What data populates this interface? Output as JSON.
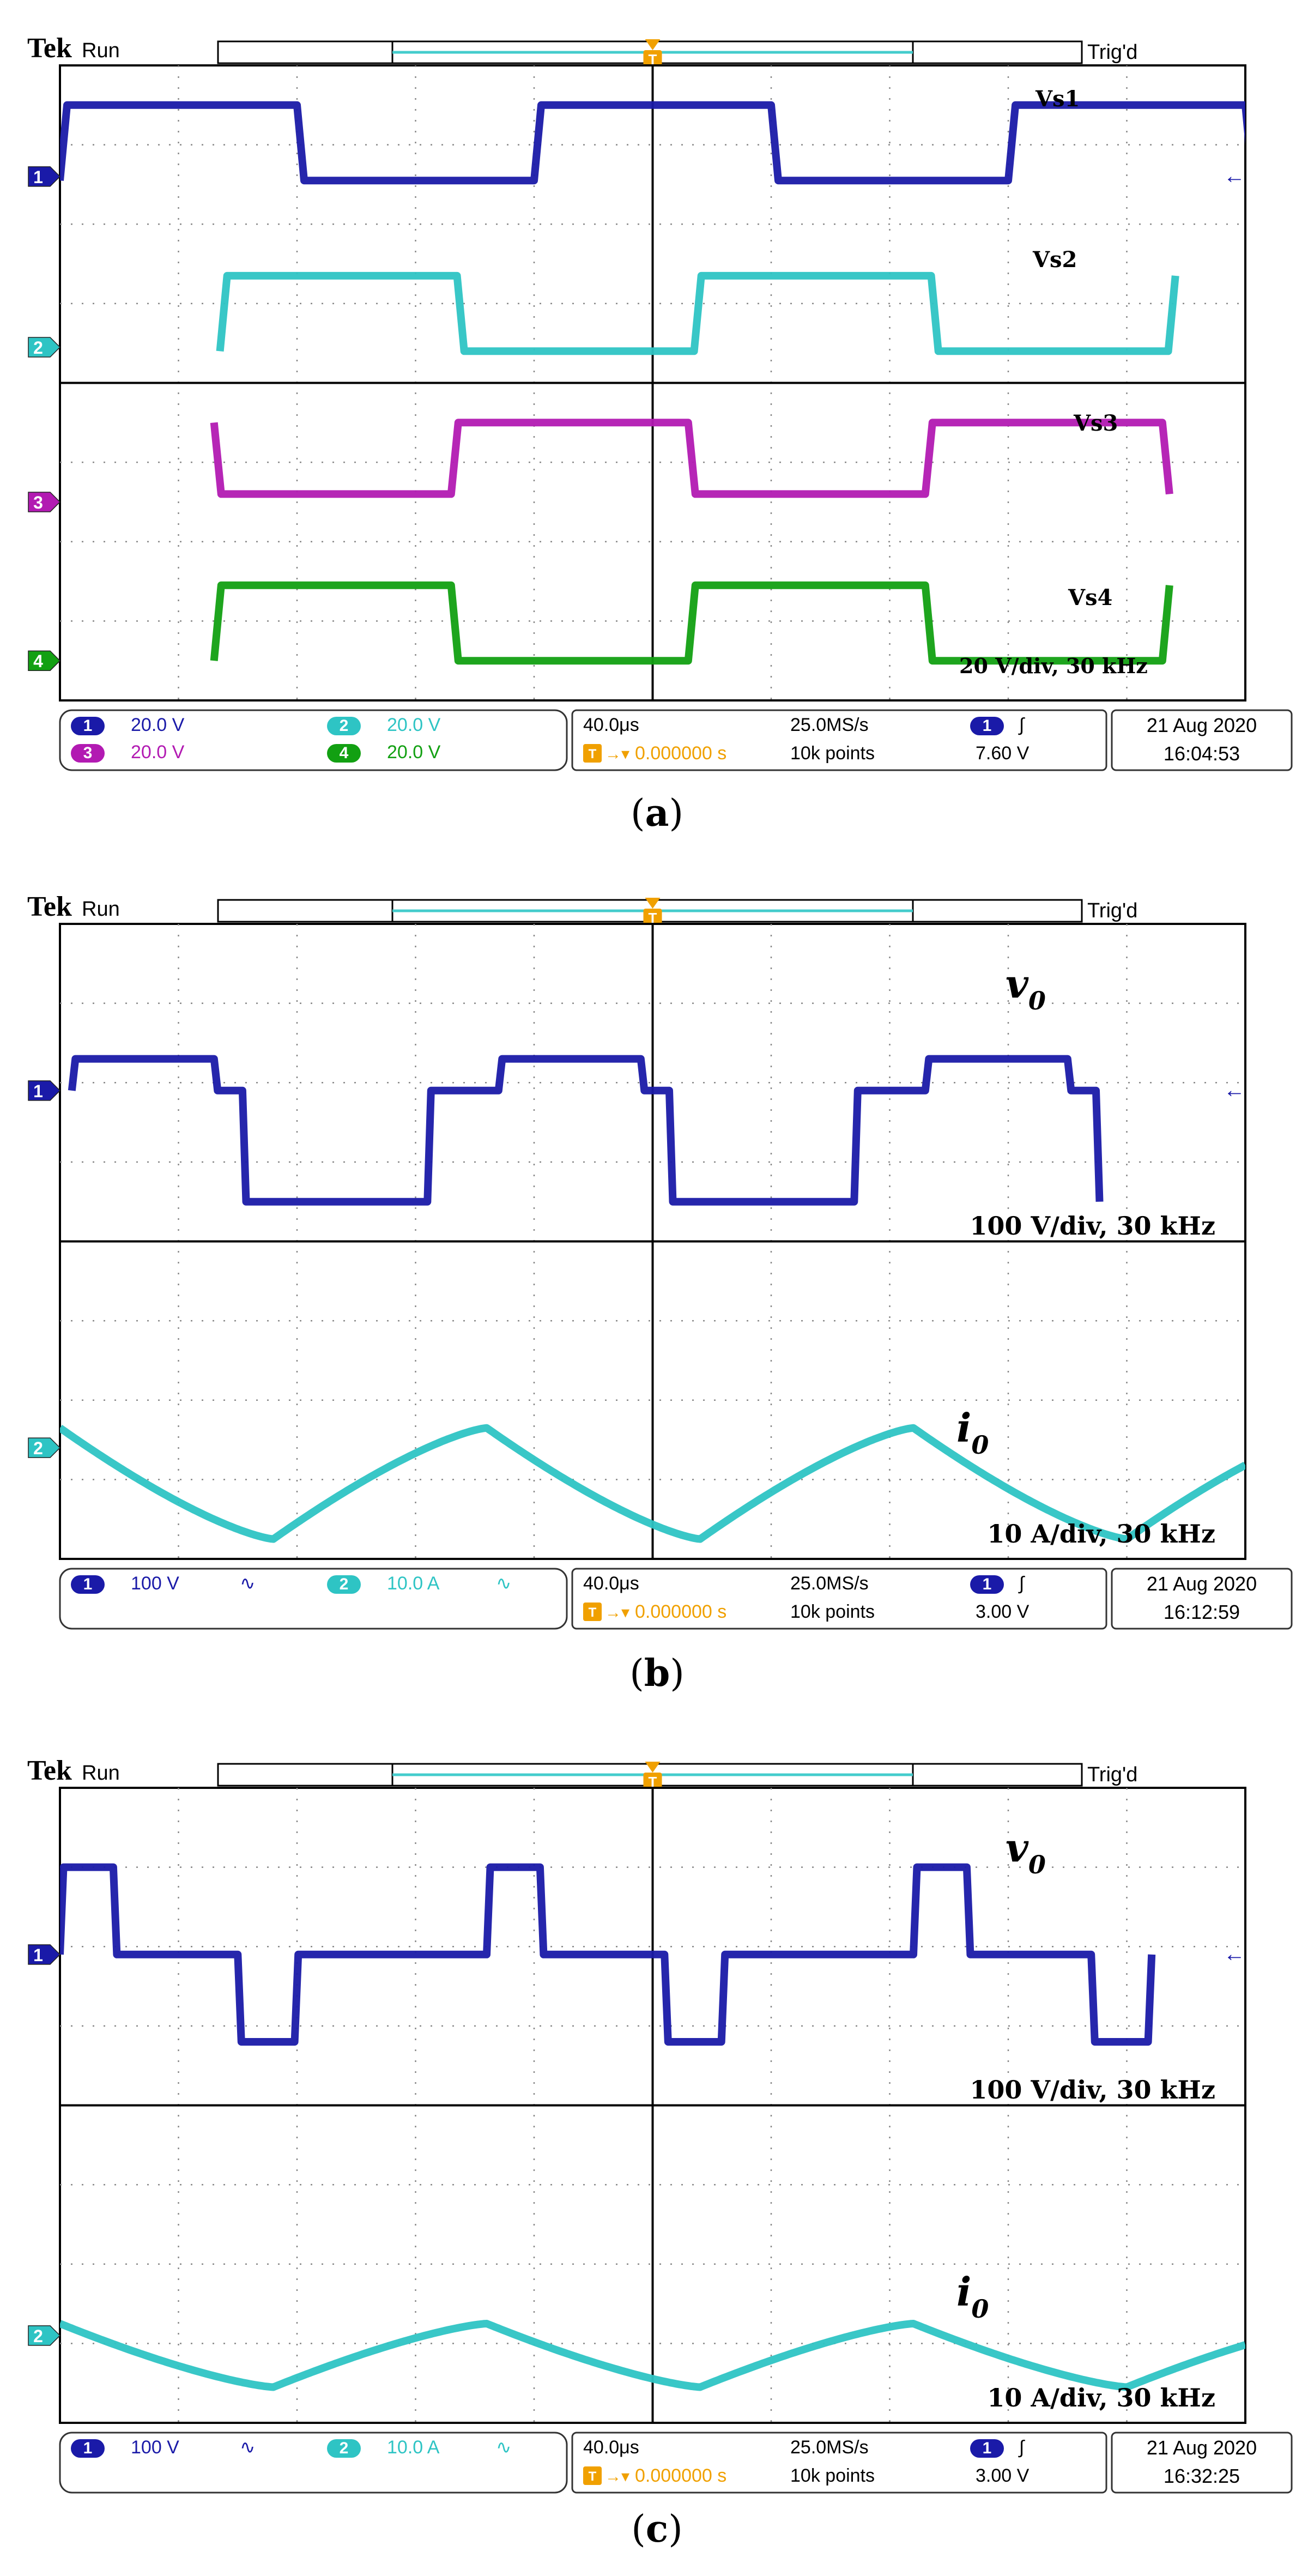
{
  "chart_data": [
    {
      "type": "line",
      "panel_caption": "a",
      "brand": "Tek",
      "run_state": "Run",
      "trigger_status": "Trig'd",
      "annotation": "20 V/div, 30 kHz",
      "grid": true,
      "x_divisions": 10,
      "y_divisions": 8,
      "series": [
        {
          "name": "Vs1",
          "channel": "1",
          "color": "#1a1aa8",
          "kind": "square",
          "period_div": 4,
          "phase_div": 0.0,
          "high_div": 3.5,
          "low_div": 2.55,
          "duty": 0.5
        },
        {
          "name": "Vs2",
          "channel": "2",
          "color": "#2ec4c4",
          "kind": "square",
          "period_div": 4,
          "phase_div": 1.35,
          "high_div": 1.35,
          "low_div": 0.4,
          "duty": 0.5
        },
        {
          "name": "Vs3",
          "channel": "3",
          "color": "#b21ab2",
          "kind": "square",
          "period_div": 4,
          "phase_div": 3.3,
          "high_div": -0.5,
          "low_div": -1.4,
          "duty": 0.5
        },
        {
          "name": "Vs4",
          "channel": "4",
          "color": "#12a012",
          "kind": "square",
          "period_div": 4,
          "phase_div": 1.3,
          "high_div": -2.55,
          "low_div": -3.5,
          "duty": 0.5
        }
      ],
      "channels": [
        {
          "ch": "1",
          "scale": "20.0 V",
          "color": "#1a1aa8",
          "marker_level_div": 2.6
        },
        {
          "ch": "2",
          "scale": "20.0 V",
          "color": "#2ec4c4",
          "marker_level_div": 0.45
        },
        {
          "ch": "3",
          "scale": "20.0 V",
          "color": "#b21ab2",
          "marker_level_div": -1.5
        },
        {
          "ch": "4",
          "scale": "20.0 V",
          "color": "#12a012",
          "marker_level_div": -3.5
        }
      ],
      "readout": {
        "timebase": "40.0μs",
        "sample_rate": "25.0MS/s",
        "record_length": "10k points",
        "trigger_position": "0.000000 s",
        "trigger_channel": "1",
        "trigger_level": "7.60 V",
        "date": "21 Aug 2020",
        "time": "16:04:53"
      }
    },
    {
      "type": "line",
      "panel_caption": "b",
      "brand": "Tek",
      "run_state": "Run",
      "trigger_status": "Trig'd",
      "grid": true,
      "x_divisions": 10,
      "y_divisions": 8,
      "series": [
        {
          "name": "v0",
          "label_main": "v",
          "label_sub": "0",
          "channel": "1",
          "color": "#1a1aa8",
          "kind": "staircase",
          "period_div": 3.6,
          "phase_div": 0.1,
          "levels_div": [
            2.3,
            1.9,
            0.5
          ],
          "annotation": "100 V/div, 30 kHz"
        },
        {
          "name": "i0",
          "label_main": "i",
          "label_sub": "0",
          "channel": "2",
          "color": "#2ec4c4",
          "kind": "triangle",
          "period_div": 3.6,
          "phase_div": 0.0,
          "peak_div": -2.35,
          "trough_div": -3.75,
          "annotation": "10 A/div, 30 kHz"
        }
      ],
      "channels": [
        {
          "ch": "1",
          "scale": "100 V",
          "color": "#1a1aa8",
          "coupling": "∿",
          "marker_level_div": 1.9
        },
        {
          "ch": "2",
          "scale": "10.0 A",
          "color": "#2ec4c4",
          "coupling": "∿",
          "marker_level_div": -2.6
        }
      ],
      "readout": {
        "timebase": "40.0μs",
        "sample_rate": "25.0MS/s",
        "record_length": "10k points",
        "trigger_position": "0.000000 s",
        "trigger_channel": "1",
        "trigger_level": "3.00 V",
        "date": "21 Aug 2020",
        "time": "16:12:59"
      }
    },
    {
      "type": "line",
      "panel_caption": "c",
      "brand": "Tek",
      "run_state": "Run",
      "trigger_status": "Trig'd",
      "grid": true,
      "x_divisions": 10,
      "y_divisions": 8,
      "series": [
        {
          "name": "v0",
          "label_main": "v",
          "label_sub": "0",
          "channel": "1",
          "color": "#1a1aa8",
          "kind": "staircase3",
          "period_div": 3.6,
          "phase_div": 0.0,
          "levels_div": [
            3.0,
            1.9,
            0.8
          ],
          "annotation": "100 V/div, 30 kHz"
        },
        {
          "name": "i0",
          "label_main": "i",
          "label_sub": "0",
          "channel": "2",
          "color": "#2ec4c4",
          "kind": "triangle",
          "period_div": 3.6,
          "phase_div": 0.0,
          "peak_div": -2.75,
          "trough_div": -3.55,
          "annotation": "10 A/div, 30 kHz"
        }
      ],
      "channels": [
        {
          "ch": "1",
          "scale": "100 V",
          "color": "#1a1aa8",
          "coupling": "∿",
          "marker_level_div": 1.9
        },
        {
          "ch": "2",
          "scale": "10.0 A",
          "color": "#2ec4c4",
          "coupling": "∿",
          "marker_level_div": -2.9
        }
      ],
      "readout": {
        "timebase": "40.0μs",
        "sample_rate": "25.0MS/s",
        "record_length": "10k points",
        "trigger_position": "0.000000 s",
        "trigger_channel": "1",
        "trigger_level": "3.00 V",
        "date": "21 Aug 2020",
        "time": "16:32:25"
      }
    }
  ]
}
